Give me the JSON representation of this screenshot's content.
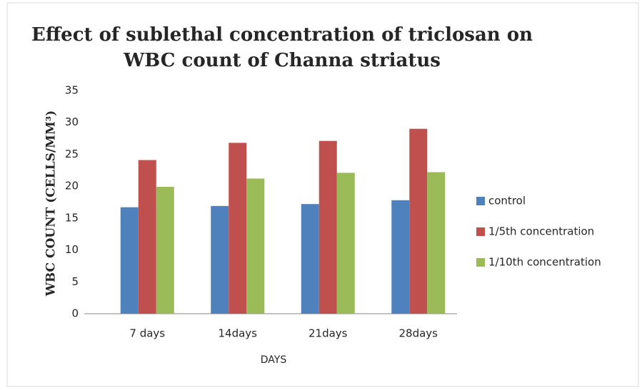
{
  "chart_data": {
    "type": "bar",
    "title": [
      "Effect of  sublethal concentration of  triclosan on",
      "WBC count of  Channa striatus"
    ],
    "y_label": "WBC COUNT (CELLS/MM³)",
    "x_label": "DAYS",
    "categories": [
      "7 days",
      "14days",
      "21days",
      "28days"
    ],
    "series": [
      {
        "name": "control",
        "color": "#4f81bd",
        "values": [
          16.7,
          16.9,
          17.2,
          17.8
        ]
      },
      {
        "name": "1/5th concentration",
        "color": "#c0504d",
        "values": [
          24.1,
          26.8,
          27.1,
          29.0
        ]
      },
      {
        "name": "1/10th concentration",
        "color": "#9bbb59",
        "values": [
          19.9,
          21.2,
          22.1,
          22.2
        ]
      }
    ],
    "ylim": [
      0,
      35
    ],
    "yticks": [
      0,
      5,
      10,
      15,
      20,
      25,
      30,
      35
    ],
    "grid": false,
    "legend": "right"
  }
}
